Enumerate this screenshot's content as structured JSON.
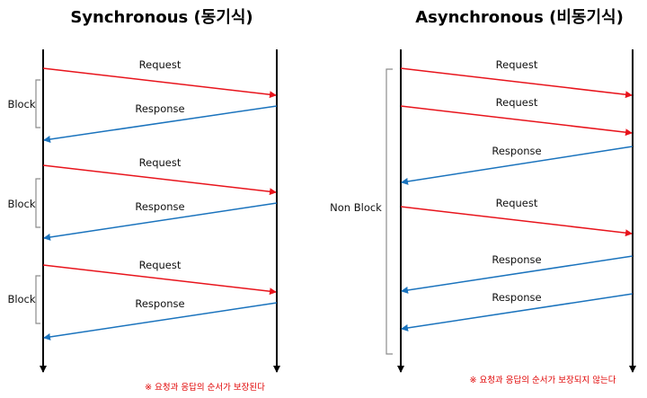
{
  "sync": {
    "title": "Synchronous (동기식)",
    "messages": [
      {
        "label": "Request",
        "type": "request"
      },
      {
        "label": "Response",
        "type": "response"
      },
      {
        "label": "Request",
        "type": "request"
      },
      {
        "label": "Response",
        "type": "response"
      },
      {
        "label": "Request",
        "type": "request"
      },
      {
        "label": "Response",
        "type": "response"
      }
    ],
    "blocks": [
      "Block",
      "Block",
      "Block"
    ],
    "note": "※ 요청과 응답의 순서가 보장된다"
  },
  "async": {
    "title": "Asynchronous (비동기식)",
    "messages": [
      {
        "label": "Request",
        "type": "request"
      },
      {
        "label": "Request",
        "type": "request"
      },
      {
        "label": "Response",
        "type": "response"
      },
      {
        "label": "Request",
        "type": "request"
      },
      {
        "label": "Response",
        "type": "response"
      },
      {
        "label": "Response",
        "type": "response"
      }
    ],
    "block": "Non Block",
    "note": "※ 요청과 응답의 순서가 보장되지 않는다"
  },
  "colors": {
    "request": "#e8141c",
    "response": "#1a73bd",
    "lifeline": "#000000",
    "bracket": "#8c8c8c",
    "note": "#e00000"
  }
}
